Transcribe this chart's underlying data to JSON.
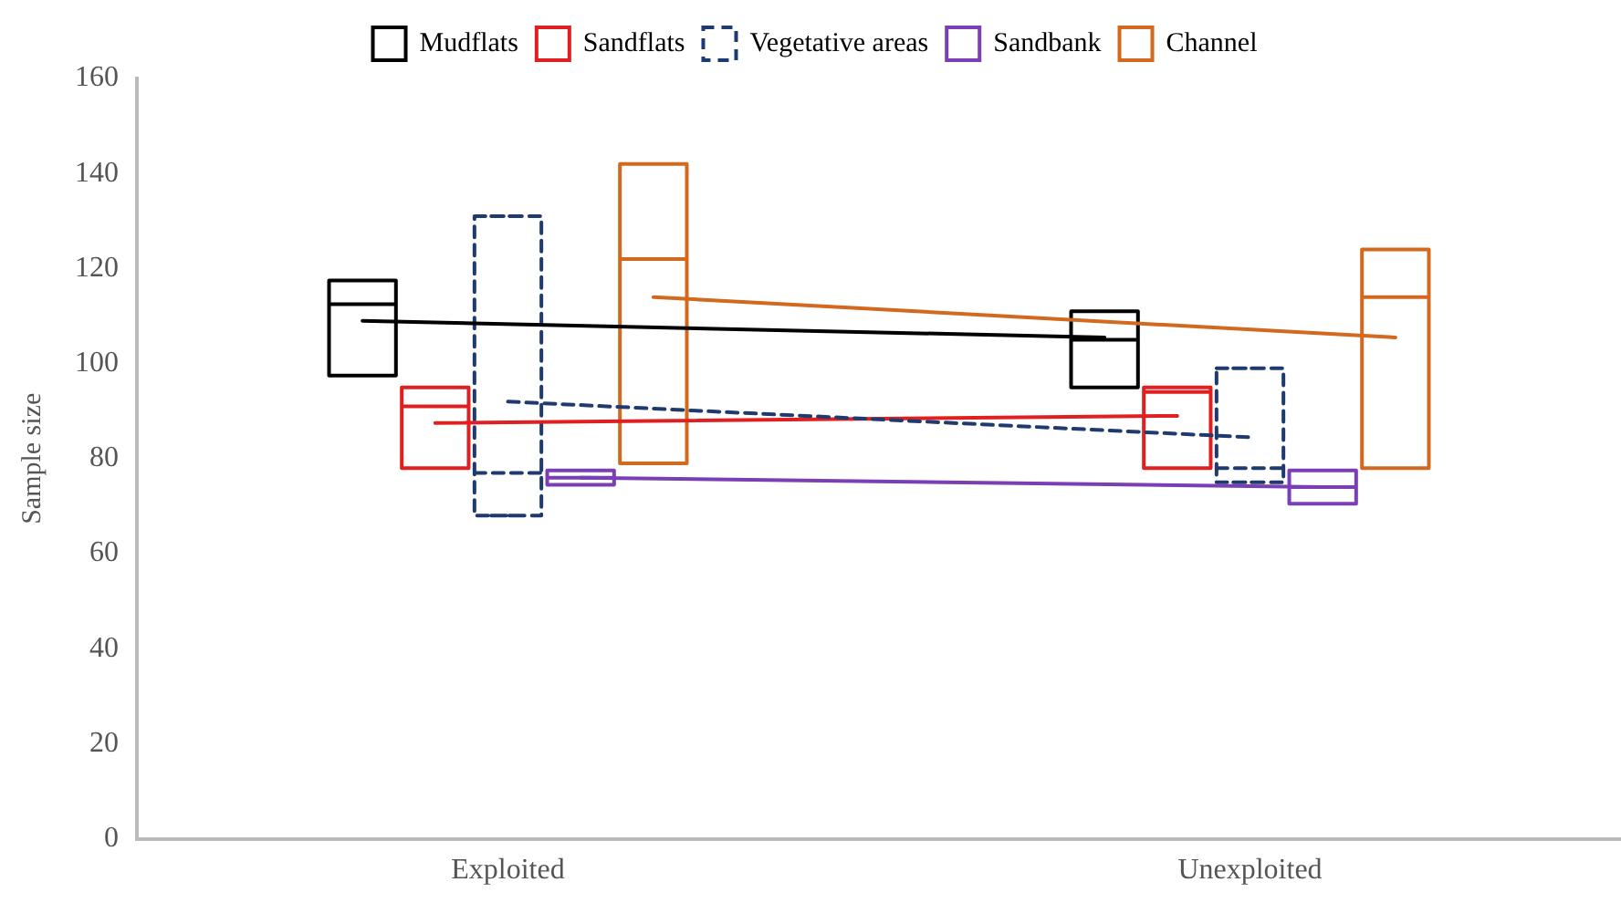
{
  "chart_data": {
    "type": "box",
    "ylabel": "Sample size",
    "categories": [
      "Exploited",
      "Unexploited"
    ],
    "ylim": [
      0,
      160
    ],
    "yticks": [
      0,
      20,
      40,
      60,
      80,
      100,
      120,
      140,
      160
    ],
    "grid": false,
    "legend": "top",
    "series": [
      {
        "name": "Mudflats",
        "color": "#000000",
        "line_style": "solid",
        "boxes": [
          {
            "low": 97.5,
            "q1": 97.5,
            "median": 112.5,
            "q3": 117.5,
            "high": 117.5
          },
          {
            "low": 95,
            "q1": 95,
            "median": 105,
            "q3": 111,
            "high": 111
          }
        ]
      },
      {
        "name": "Sandflats",
        "color": "#e02020",
        "line_style": "solid",
        "boxes": [
          {
            "low": 78,
            "q1": 78,
            "median": 91,
            "q3": 95,
            "high": 95
          },
          {
            "low": 78,
            "q1": 78,
            "median": 94,
            "q3": 95,
            "high": 95
          }
        ]
      },
      {
        "name": "Vegetative areas",
        "color": "#1f3a6e",
        "line_style": "dashed",
        "boxes": [
          {
            "low": 68,
            "q1": 68,
            "median": 77,
            "q3": 131,
            "high": 131
          },
          {
            "low": 75,
            "q1": 75,
            "median": 78,
            "q3": 99,
            "high": 99
          }
        ]
      },
      {
        "name": "Sandbank",
        "color": "#7b3fb5",
        "line_style": "solid",
        "boxes": [
          {
            "low": 74.5,
            "q1": 74.5,
            "median": 76,
            "q3": 77.5,
            "high": 77.5
          },
          {
            "low": 70.5,
            "q1": 70.5,
            "median": 74,
            "q3": 77.5,
            "high": 77.5
          }
        ]
      },
      {
        "name": "Channel",
        "color": "#d2691e",
        "line_style": "solid",
        "boxes": [
          {
            "low": 79,
            "q1": 79,
            "median": 122,
            "q3": 142,
            "high": 142
          },
          {
            "low": 78,
            "q1": 78,
            "median": 114,
            "q3": 124,
            "high": 124
          }
        ]
      },
      {
        "type": "line",
        "color": "#000000",
        "line_style": "solid",
        "values": [
          109,
          105.5
        ]
      },
      {
        "type": "line",
        "color": "#e02020",
        "line_style": "solid",
        "values": [
          87.5,
          89
        ]
      },
      {
        "type": "line",
        "color": "#1f3a6e",
        "line_style": "dashed",
        "values": [
          92,
          84.5
        ]
      },
      {
        "type": "line",
        "color": "#7b3fb5",
        "line_style": "solid",
        "values": [
          76,
          74
        ]
      },
      {
        "type": "line",
        "color": "#d2691e",
        "line_style": "solid",
        "values": [
          114,
          105.5
        ]
      }
    ]
  }
}
